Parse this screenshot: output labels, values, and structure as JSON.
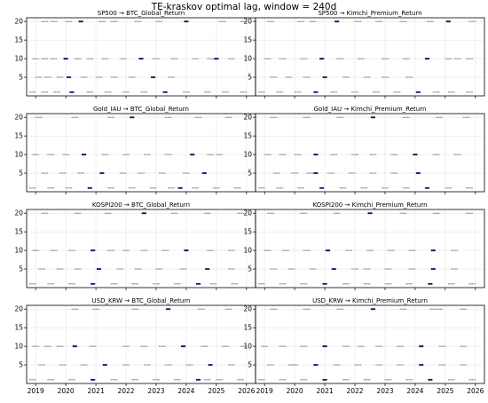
{
  "figure": {
    "title": "TE-kraskov optimal lag, window = 240d"
  },
  "chart_data": [
    {
      "type": "scatter",
      "title": "SP500 → BTC_Global_Return",
      "xlim": [
        2018.7,
        2026.3
      ],
      "ylim": [
        0,
        21
      ],
      "yticks": [
        5,
        10,
        15,
        20
      ],
      "grid": true,
      "series": [
        {
          "x": [
            2019.3,
            2019.6,
            2020.1,
            2020.5,
            2021.2,
            2021.6,
            2022.4,
            2023.1,
            2024.0,
            2025.2,
            2025.9
          ],
          "y": [
            20,
            20,
            20,
            20,
            20,
            20,
            20,
            20,
            20,
            20,
            20
          ]
        },
        {
          "x": [
            2019.0,
            2019.3,
            2019.6,
            2020.0,
            2020.4,
            2020.8,
            2021.3,
            2021.9,
            2022.5,
            2023.0,
            2023.6,
            2024.3,
            2024.8,
            2025.0,
            2025.5
          ],
          "y": [
            10,
            10,
            10,
            10,
            10,
            10,
            10,
            10,
            10,
            10,
            10,
            10,
            10,
            10,
            10
          ]
        },
        {
          "x": [
            2019.1,
            2019.4,
            2019.8,
            2020.1,
            2020.6,
            2021.1,
            2021.6,
            2022.2,
            2022.9,
            2023.5
          ],
          "y": [
            5,
            5,
            5,
            5,
            5,
            5,
            5,
            5,
            5,
            5
          ]
        },
        {
          "x": [
            2018.9,
            2019.3,
            2019.7,
            2020.2,
            2020.8,
            2021.4,
            2022.0,
            2022.6,
            2023.3,
            2024.0,
            2024.7,
            2025.3,
            2025.9
          ],
          "y": [
            1,
            1,
            1,
            1,
            1,
            1,
            1,
            1,
            1,
            1,
            1,
            1,
            1
          ]
        }
      ]
    },
    {
      "type": "scatter",
      "title": "SP500 → Kimchi_Premium_Return",
      "xlim": [
        2018.7,
        2026.3
      ],
      "ylim": [
        0,
        21
      ],
      "yticks": [
        5,
        10,
        15,
        20
      ],
      "grid": true,
      "series": [
        {
          "x": [
            2019.2,
            2020.2,
            2020.6,
            2021.4,
            2022.1,
            2022.8,
            2023.6,
            2024.5,
            2025.1,
            2025.9
          ],
          "y": [
            20,
            20,
            20,
            20,
            20,
            20,
            20,
            20,
            20,
            20
          ]
        },
        {
          "x": [
            2019.1,
            2019.6,
            2020.3,
            2020.9,
            2021.5,
            2022.2,
            2023.0,
            2023.7,
            2024.4,
            2025.1,
            2025.4,
            2025.8
          ],
          "y": [
            10,
            10,
            10,
            10,
            10,
            10,
            10,
            10,
            10,
            10,
            10,
            10
          ]
        },
        {
          "x": [
            2019.3,
            2019.8,
            2020.4,
            2021.0,
            2021.7,
            2022.4,
            2023.0,
            2023.8
          ],
          "y": [
            5,
            5,
            5,
            5,
            5,
            5,
            5,
            5
          ]
        },
        {
          "x": [
            2018.9,
            2019.5,
            2020.1,
            2020.7,
            2021.3,
            2022.0,
            2022.7,
            2023.4,
            2024.1,
            2024.7,
            2025.2,
            2025.8
          ],
          "y": [
            1,
            1,
            1,
            1,
            1,
            1,
            1,
            1,
            1,
            1,
            1,
            1
          ]
        }
      ]
    },
    {
      "type": "scatter",
      "title": "Gold_IAU → BTC_Global_Return",
      "xlim": [
        2018.7,
        2026.3
      ],
      "ylim": [
        0,
        21
      ],
      "yticks": [
        5,
        10,
        15,
        20
      ],
      "grid": true,
      "series": [
        {
          "x": [
            2019.1,
            2020.3,
            2021.5,
            2022.2,
            2023.4,
            2024.4,
            2025.4
          ],
          "y": [
            20,
            20,
            20,
            20,
            20,
            20,
            20
          ]
        },
        {
          "x": [
            2019.0,
            2019.5,
            2020.0,
            2020.6,
            2021.3,
            2022.0,
            2022.7,
            2023.4,
            2024.2,
            2024.8,
            2025.1
          ],
          "y": [
            10,
            10,
            10,
            10,
            10,
            10,
            10,
            10,
            10,
            10,
            10
          ]
        },
        {
          "x": [
            2019.3,
            2019.9,
            2020.5,
            2021.2,
            2021.9,
            2022.5,
            2023.2,
            2024.0,
            2024.6
          ],
          "y": [
            5,
            5,
            5,
            5,
            5,
            5,
            5,
            5,
            5
          ]
        },
        {
          "x": [
            2018.9,
            2019.5,
            2020.1,
            2020.8,
            2021.5,
            2022.2,
            2022.9,
            2023.5,
            2023.8,
            2024.3,
            2025.0,
            2025.7
          ],
          "y": [
            1,
            1,
            1,
            1,
            1,
            1,
            1,
            1,
            1,
            1,
            1,
            1
          ]
        }
      ]
    },
    {
      "type": "scatter",
      "title": "Gold_IAU → Kimchi_Premium_Return",
      "xlim": [
        2018.7,
        2026.3
      ],
      "ylim": [
        0,
        21
      ],
      "yticks": [
        5,
        10,
        15,
        20
      ],
      "grid": true,
      "series": [
        {
          "x": [
            2019.3,
            2020.4,
            2021.5,
            2022.6,
            2023.7,
            2024.8,
            2025.7
          ],
          "y": [
            20,
            20,
            20,
            20,
            20,
            20,
            20
          ]
        },
        {
          "x": [
            2019.1,
            2019.6,
            2020.1,
            2020.7,
            2021.3,
            2022.0,
            2022.6,
            2023.3,
            2024.0,
            2024.7,
            2025.4
          ],
          "y": [
            10,
            10,
            10,
            10,
            10,
            10,
            10,
            10,
            10,
            10,
            10
          ]
        },
        {
          "x": [
            2019.4,
            2020.0,
            2020.5,
            2020.7,
            2021.2,
            2021.9,
            2022.6,
            2023.3,
            2024.1
          ],
          "y": [
            5,
            5,
            5,
            5,
            5,
            5,
            5,
            5,
            5
          ]
        },
        {
          "x": [
            2018.9,
            2019.5,
            2020.2,
            2020.9,
            2021.6,
            2022.3,
            2023.0,
            2023.7,
            2024.4,
            2025.1,
            2025.8
          ],
          "y": [
            1,
            1,
            1,
            1,
            1,
            1,
            1,
            1,
            1,
            1,
            1
          ]
        }
      ]
    },
    {
      "type": "scatter",
      "title": "KOSPI200 → BTC_Global_Return",
      "xlim": [
        2018.7,
        2026.3
      ],
      "ylim": [
        0,
        21
      ],
      "yticks": [
        5,
        10,
        15,
        20
      ],
      "grid": true,
      "series": [
        {
          "x": [
            2019.3,
            2020.4,
            2021.4,
            2022.6,
            2023.6,
            2024.7,
            2025.8
          ],
          "y": [
            20,
            20,
            20,
            20,
            20,
            20,
            20
          ]
        },
        {
          "x": [
            2019.0,
            2019.6,
            2020.2,
            2020.9,
            2021.5,
            2022.0,
            2022.6,
            2023.3,
            2024.0,
            2024.8,
            2025.5
          ],
          "y": [
            10,
            10,
            10,
            10,
            10,
            10,
            10,
            10,
            10,
            10,
            10
          ]
        },
        {
          "x": [
            2019.2,
            2019.8,
            2020.4,
            2021.1,
            2021.8,
            2022.4,
            2023.1,
            2023.9,
            2024.7,
            2025.5
          ],
          "y": [
            5,
            5,
            5,
            5,
            5,
            5,
            5,
            5,
            5,
            5
          ]
        },
        {
          "x": [
            2018.9,
            2019.5,
            2020.2,
            2020.9,
            2021.6,
            2022.3,
            2023.0,
            2023.7,
            2024.4,
            2024.9,
            2025.6
          ],
          "y": [
            1,
            1,
            1,
            1,
            1,
            1,
            1,
            1,
            1,
            1,
            1
          ]
        }
      ]
    },
    {
      "type": "scatter",
      "title": "KOSPI200 → Kimchi_Premium_Return",
      "xlim": [
        2018.7,
        2026.3
      ],
      "ylim": [
        0,
        21
      ],
      "yticks": [
        5,
        10,
        15,
        20
      ],
      "grid": true,
      "series": [
        {
          "x": [
            2019.2,
            2020.3,
            2021.4,
            2022.5,
            2023.6,
            2024.7,
            2025.8
          ],
          "y": [
            20,
            20,
            20,
            20,
            20,
            20,
            20
          ]
        },
        {
          "x": [
            2019.1,
            2019.7,
            2020.4,
            2021.1,
            2021.8,
            2022.5,
            2023.2,
            2023.9,
            2024.6,
            2025.3
          ],
          "y": [
            10,
            10,
            10,
            10,
            10,
            10,
            10,
            10,
            10,
            10
          ]
        },
        {
          "x": [
            2019.3,
            2019.9,
            2020.6,
            2021.3,
            2022.0,
            2022.4,
            2023.1,
            2023.9,
            2024.6,
            2025.3
          ],
          "y": [
            5,
            5,
            5,
            5,
            5,
            5,
            5,
            5,
            5,
            5
          ]
        },
        {
          "x": [
            2018.9,
            2019.6,
            2020.3,
            2021.0,
            2021.7,
            2022.4,
            2023.1,
            2023.8,
            2024.5,
            2025.2,
            2025.9
          ],
          "y": [
            1,
            1,
            1,
            1,
            1,
            1,
            1,
            1,
            1,
            1,
            1
          ]
        }
      ]
    },
    {
      "type": "scatter",
      "title": "USD_KRW → BTC_Global_Return",
      "xlim": [
        2018.7,
        2026.3
      ],
      "ylim": [
        0,
        21
      ],
      "yticks": [
        5,
        10,
        15,
        20
      ],
      "grid": true,
      "series": [
        {
          "x": [
            2020.3,
            2021.0,
            2022.3,
            2023.4,
            2024.5,
            2025.4
          ],
          "y": [
            20,
            20,
            20,
            20,
            20,
            20
          ]
        },
        {
          "x": [
            2019.0,
            2019.4,
            2019.8,
            2020.3,
            2020.9,
            2022.0,
            2022.6,
            2023.2,
            2023.9,
            2024.6,
            2025.3,
            2025.9
          ],
          "y": [
            10,
            10,
            10,
            10,
            10,
            10,
            10,
            10,
            10,
            10,
            10,
            10
          ]
        },
        {
          "x": [
            2019.2,
            2019.9,
            2020.6,
            2021.3,
            2022.0,
            2022.7,
            2023.4,
            2024.1,
            2024.8,
            2025.5
          ],
          "y": [
            5,
            5,
            5,
            5,
            5,
            5,
            5,
            5,
            5,
            5
          ]
        },
        {
          "x": [
            2018.9,
            2019.5,
            2020.2,
            2020.9,
            2021.6,
            2022.3,
            2023.0,
            2023.7,
            2024.4,
            2024.7,
            2025.1,
            2025.8
          ],
          "y": [
            1,
            1,
            1,
            1,
            1,
            1,
            1,
            1,
            1,
            1,
            1,
            1
          ]
        }
      ]
    },
    {
      "type": "scatter",
      "title": "USD_KRW → Kimchi_Premium_Return",
      "xlim": [
        2018.7,
        2026.3
      ],
      "ylim": [
        0,
        21
      ],
      "yticks": [
        5,
        10,
        15,
        20
      ],
      "grid": true,
      "series": [
        {
          "x": [
            2019.3,
            2020.4,
            2021.5,
            2022.6,
            2023.6,
            2024.6,
            2024.8,
            2025.6
          ],
          "y": [
            20,
            20,
            20,
            20,
            20,
            20,
            20,
            20
          ]
        },
        {
          "x": [
            2019.0,
            2019.6,
            2020.3,
            2021.0,
            2021.7,
            2022.2,
            2022.8,
            2023.5,
            2024.2,
            2024.9,
            2025.6
          ],
          "y": [
            10,
            10,
            10,
            10,
            10,
            10,
            10,
            10,
            10,
            10,
            10
          ]
        },
        {
          "x": [
            2019.2,
            2019.9,
            2020.0,
            2020.7,
            2021.4,
            2022.1,
            2022.8,
            2023.5,
            2024.2,
            2024.9,
            2025.6
          ],
          "y": [
            5,
            5,
            5,
            5,
            5,
            5,
            5,
            5,
            5,
            5,
            5
          ]
        },
        {
          "x": [
            2018.9,
            2019.6,
            2020.3,
            2021.0,
            2021.7,
            2022.4,
            2023.1,
            2023.8,
            2024.5,
            2025.2,
            2025.9
          ],
          "y": [
            1,
            1,
            1,
            1,
            1,
            1,
            1,
            1,
            1,
            1,
            1
          ]
        }
      ]
    }
  ],
  "x_ticks": [
    "2019",
    "2020",
    "2021",
    "2022",
    "2023",
    "2024",
    "2025",
    "2026"
  ],
  "x_tick_values": [
    2019,
    2020,
    2021,
    2022,
    2023,
    2024,
    2025,
    2026
  ],
  "colors": {
    "point": "#9a9a9a",
    "highlight": "#1a1a6e",
    "grid": "#e6e6e6",
    "axis": "#000000"
  }
}
